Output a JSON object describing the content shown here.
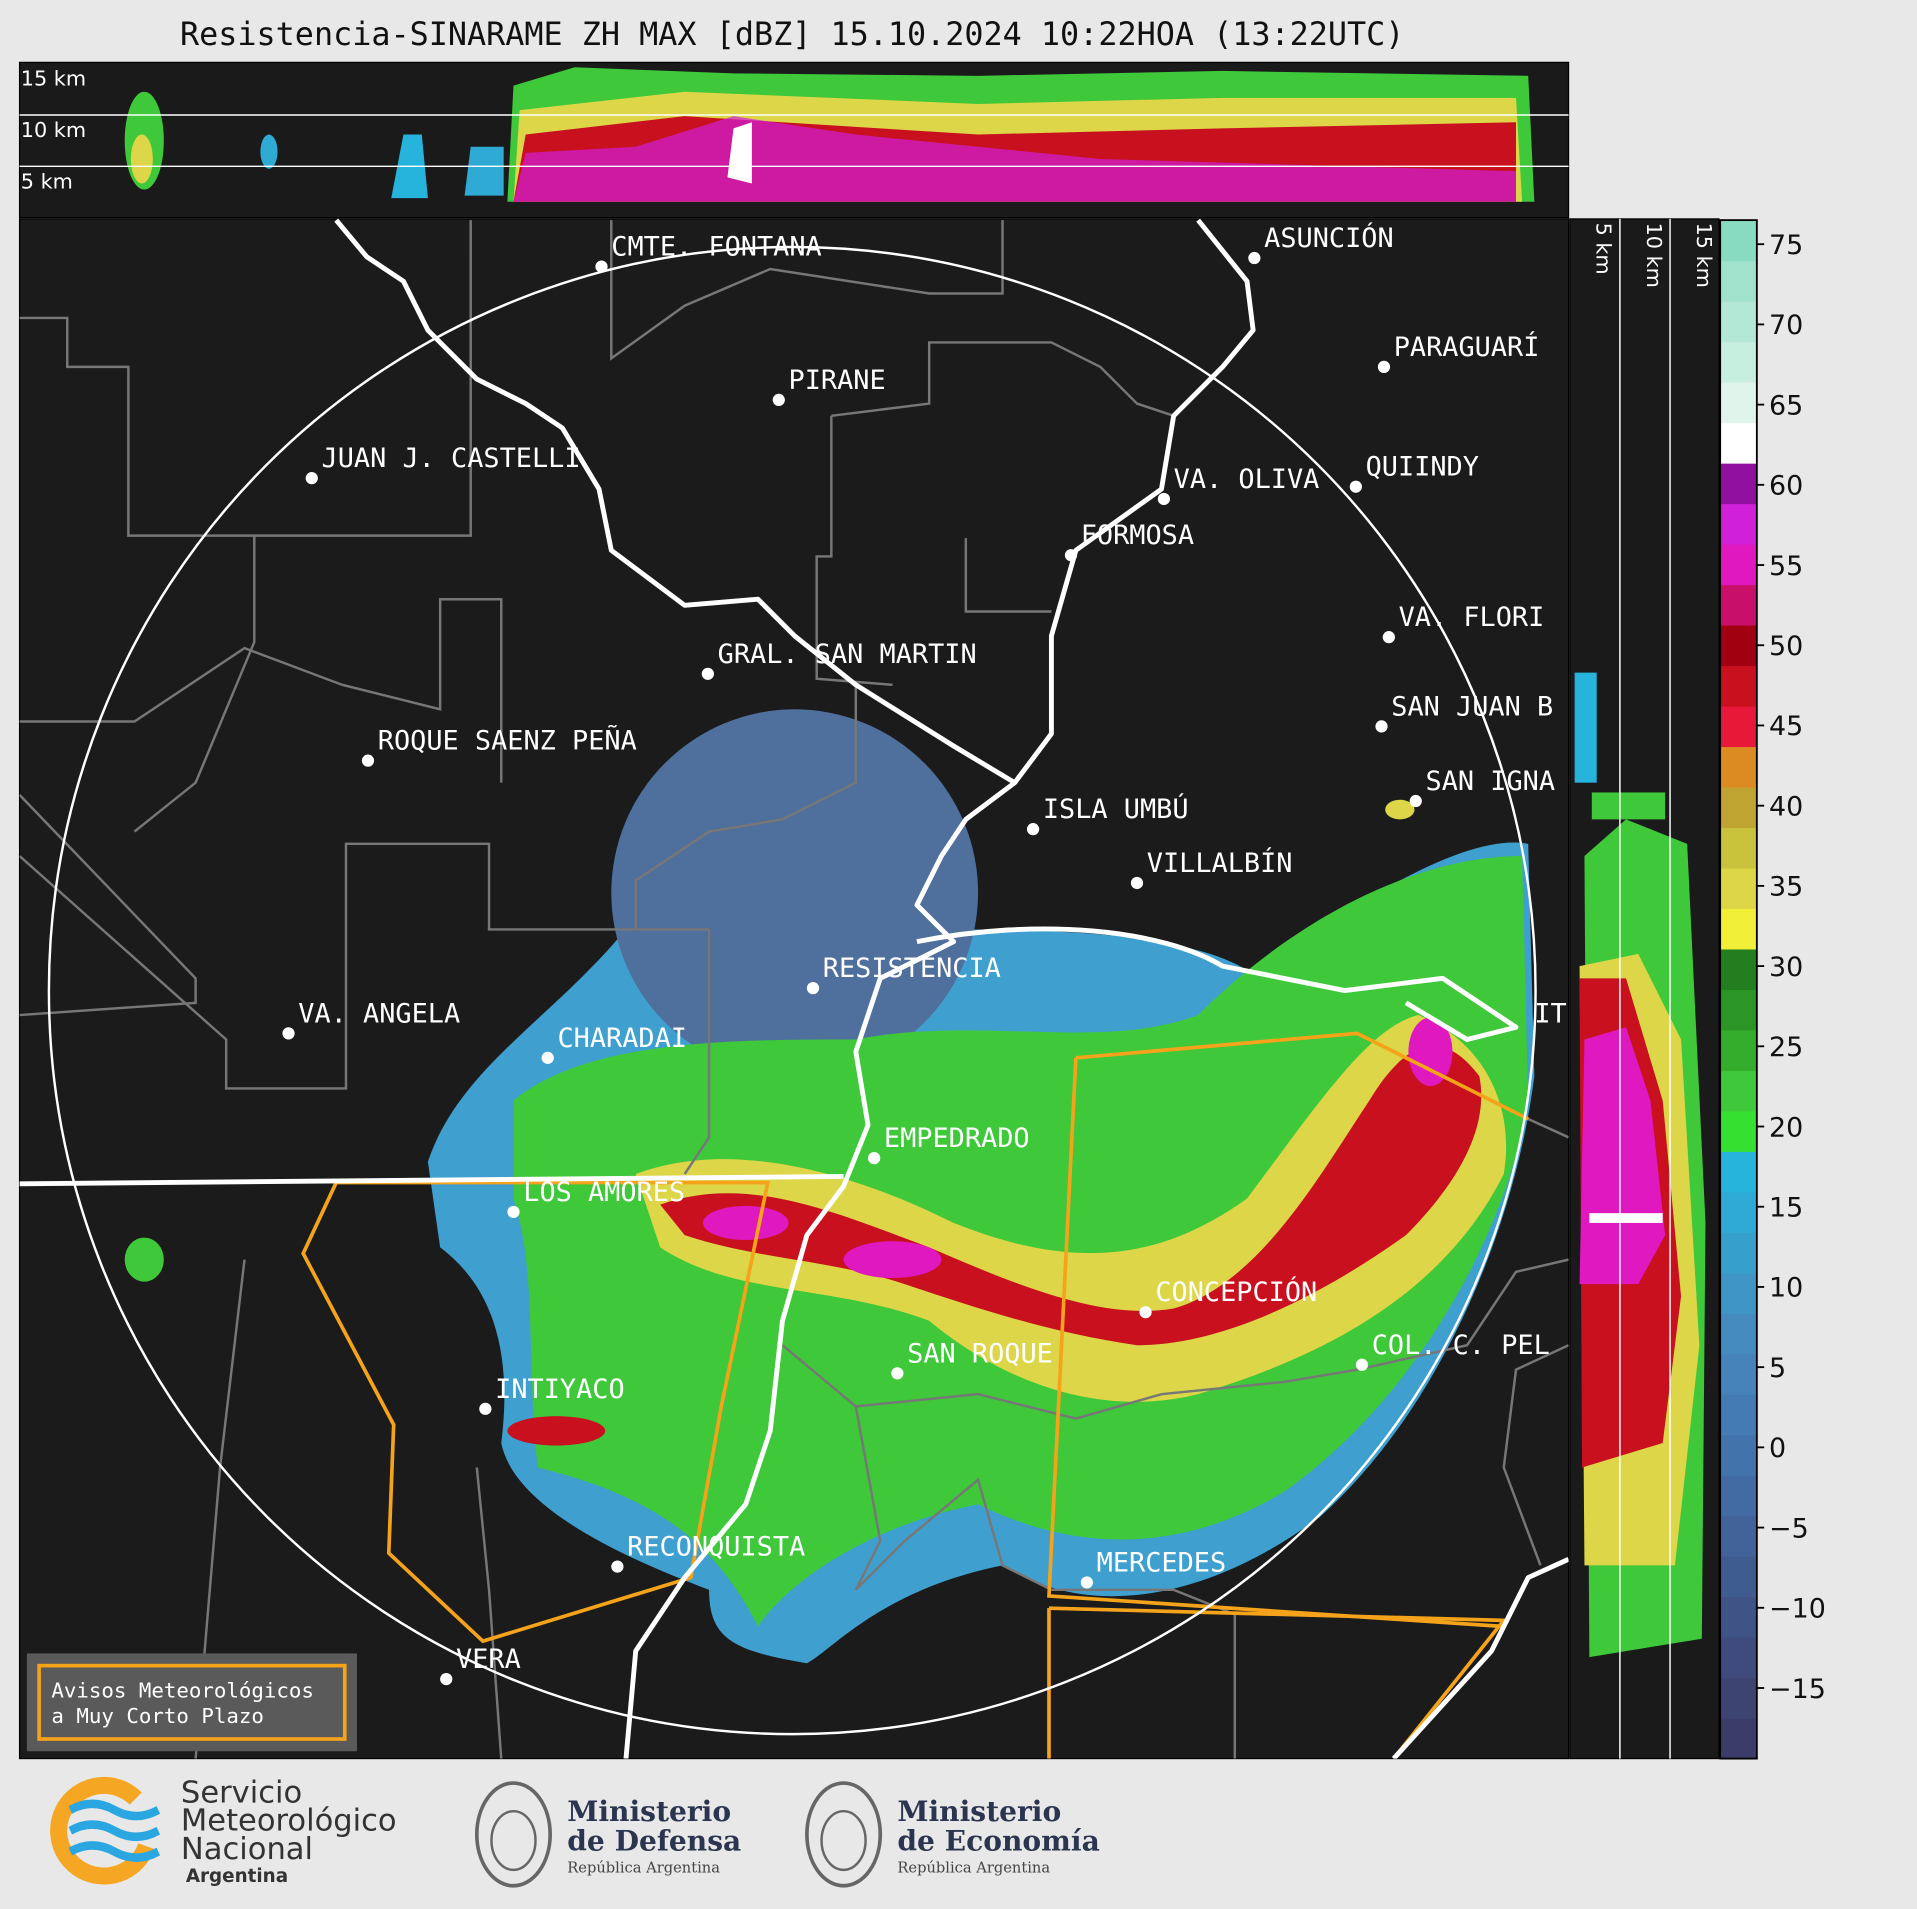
{
  "header": {
    "title": "Resistencia-SINARAME ZH MAX [dBZ] 15.10.2024 10:22HOA (13:22UTC)"
  },
  "cross_section_top": {
    "altitude_labels": [
      "15 km",
      "10 km",
      "5 km"
    ]
  },
  "cross_section_right": {
    "altitude_labels": [
      "5 km",
      "10 km",
      "15 km"
    ]
  },
  "map": {
    "cities": [
      "CMTE. FONTANA",
      "PIRANE",
      "JUAN J. CASTELLI",
      "ASUNCIÓN",
      "PARAGUARÍ",
      "VA. OLIVA",
      "QUIINDY",
      "FORMOSA",
      "VA. FLORI",
      "GRAL. SAN MARTIN",
      "SAN JUAN B",
      "ROQUE SAENZ PEÑA",
      "SAN IGNA",
      "ISLA UMBÚ",
      "VILLALBÍN",
      "RESISTENCIA",
      "VA. ANGELA",
      "CHARADAI",
      "EMPEDRADO",
      "LOS AMORES",
      "CONCEPCIÓN",
      "COL. C. PEL",
      "SAN ROQUE",
      "INTIYACO",
      "RECONQUISTA",
      "MERCEDES",
      "VERA",
      "IT"
    ]
  },
  "colorbar": {
    "lim": [
      -19.4,
      76.5
    ],
    "ticks": [
      75,
      70,
      65,
      60,
      55,
      50,
      45,
      40,
      35,
      30,
      25,
      20,
      15,
      10,
      5,
      0,
      {
        "value": -5,
        "label": "−5"
      },
      {
        "value": -10,
        "label": "−10"
      },
      {
        "value": -15,
        "label": "−15"
      }
    ],
    "colors": [
      "#3b3d68",
      "#3d4472",
      "#3e4b7c",
      "#3f5386",
      "#405b90",
      "#41639a",
      "#426ba3",
      "#4373ab",
      "#447bb2",
      "#4583b8",
      "#468bbe",
      "#3f95c5",
      "#369fcc",
      "#2eaad4",
      "#27b4dc",
      "#36e030",
      "#3ec83a",
      "#34ad2c",
      "#2b9526",
      "#237e20",
      "#f2ef38",
      "#ddd748",
      "#c8c23c",
      "#c0a432",
      "#dc8a22",
      "#e8183a",
      "#c8101e",
      "#a00010",
      "#c8106a",
      "#e018c0",
      "#d020d8",
      "#9010a0",
      "#ffffff",
      "#e0f4ec",
      "#c8eee0",
      "#b4e8d6",
      "#a0e2cc",
      "#88dbc0"
    ]
  },
  "warning_box": {
    "lines": [
      "Avisos Meteorológicos",
      "a Muy Corto Plazo"
    ]
  },
  "footer": {
    "smn": [
      "Servicio",
      "Meteorológico",
      "Nacional",
      "Argentina"
    ],
    "defensa": [
      "Ministerio",
      "de Defensa",
      "República Argentina"
    ],
    "economia": [
      "Ministerio",
      "de Economía",
      "República Argentina"
    ]
  }
}
